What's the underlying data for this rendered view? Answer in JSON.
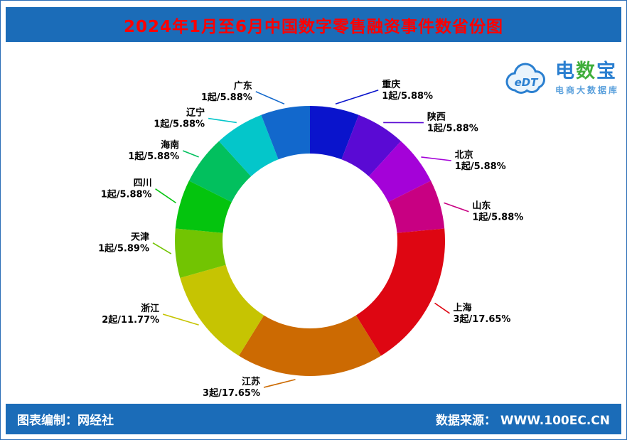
{
  "header": {
    "title": "2024年1月至6月中国数字零售融资事件数省份图"
  },
  "logo": {
    "abbr": "eDT",
    "brand_chars": [
      "电",
      "数",
      "宝"
    ],
    "subtitle": "电商大数据库"
  },
  "footer": {
    "credit": "图表编制：网经社",
    "source": "数据来源： WWW.100EC.CN"
  },
  "chart_data": {
    "type": "pie",
    "subtype": "donut",
    "title": "2024年1月至6月中国数字零售融资事件数省份图",
    "unit": "起",
    "total_events": 17,
    "direction": "clockwise",
    "start_angle_deg": 0,
    "legend_position": "outside-labels",
    "segments": [
      {
        "name": "重庆",
        "count": 1,
        "label": "1起/5.88%",
        "percent": 5.88,
        "color": "#0a14cc"
      },
      {
        "name": "陕西",
        "count": 1,
        "label": "1起/5.88%",
        "percent": 5.88,
        "color": "#5a0ad4"
      },
      {
        "name": "北京",
        "count": 1,
        "label": "1起/5.88%",
        "percent": 5.88,
        "color": "#a402d8"
      },
      {
        "name": "山东",
        "count": 1,
        "label": "1起/5.88%",
        "percent": 5.88,
        "color": "#c80082"
      },
      {
        "name": "上海",
        "count": 3,
        "label": "3起/17.65%",
        "percent": 17.65,
        "color": "#de0612"
      },
      {
        "name": "江苏",
        "count": 3,
        "label": "3起/17.65%",
        "percent": 17.65,
        "color": "#cc6a02"
      },
      {
        "name": "浙江",
        "count": 2,
        "label": "2起/11.77%",
        "percent": 11.77,
        "color": "#c6c402"
      },
      {
        "name": "天津",
        "count": 1,
        "label": "1起/5.89%",
        "percent": 5.89,
        "color": "#72c402"
      },
      {
        "name": "四川",
        "count": 1,
        "label": "1起/5.88%",
        "percent": 5.88,
        "color": "#04c40e"
      },
      {
        "name": "海南",
        "count": 1,
        "label": "1起/5.88%",
        "percent": 5.88,
        "color": "#02c05e"
      },
      {
        "name": "辽宁",
        "count": 1,
        "label": "1起/5.88%",
        "percent": 5.88,
        "color": "#04c6ca"
      },
      {
        "name": "广东",
        "count": 1,
        "label": "1起/5.88%",
        "percent": 5.88,
        "color": "#1268cc"
      }
    ]
  }
}
